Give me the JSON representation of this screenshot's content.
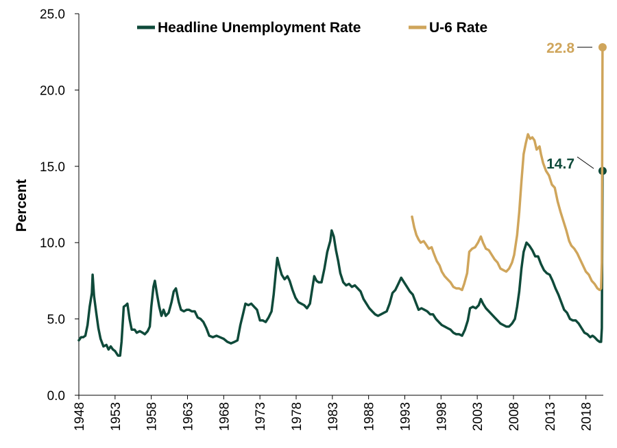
{
  "chart_data": {
    "type": "line",
    "ylabel": "Percent",
    "ylim": [
      0,
      25
    ],
    "xlim": [
      1948,
      2020.4
    ],
    "y_ticks": [
      "0.0",
      "5.0",
      "10.0",
      "15.0",
      "20.0",
      "25.0"
    ],
    "x_ticks": [
      "1948",
      "1953",
      "1958",
      "1963",
      "1968",
      "1973",
      "1978",
      "1983",
      "1988",
      "1993",
      "1998",
      "2003",
      "2008",
      "2013",
      "2018"
    ],
    "grid": false,
    "legend_position": "top",
    "series": [
      {
        "name": "Headline Unemployment Rate",
        "color": "#0f4a3a",
        "points": [
          [
            1948.0,
            3.6
          ],
          [
            1948.3,
            3.8
          ],
          [
            1948.6,
            3.8
          ],
          [
            1948.9,
            3.9
          ],
          [
            1949.2,
            4.6
          ],
          [
            1949.5,
            5.8
          ],
          [
            1949.8,
            6.7
          ],
          [
            1949.9,
            7.9
          ],
          [
            1950.1,
            6.5
          ],
          [
            1950.4,
            5.4
          ],
          [
            1950.7,
            4.4
          ],
          [
            1951.0,
            3.7
          ],
          [
            1951.4,
            3.2
          ],
          [
            1951.8,
            3.3
          ],
          [
            1952.1,
            3.0
          ],
          [
            1952.4,
            3.2
          ],
          [
            1952.7,
            3.0
          ],
          [
            1953.0,
            2.9
          ],
          [
            1953.4,
            2.6
          ],
          [
            1953.7,
            2.6
          ],
          [
            1953.9,
            3.5
          ],
          [
            1954.2,
            5.8
          ],
          [
            1954.5,
            5.9
          ],
          [
            1954.7,
            6.0
          ],
          [
            1955.0,
            5.0
          ],
          [
            1955.3,
            4.3
          ],
          [
            1955.7,
            4.3
          ],
          [
            1956.0,
            4.1
          ],
          [
            1956.4,
            4.2
          ],
          [
            1956.8,
            4.1
          ],
          [
            1957.1,
            4.0
          ],
          [
            1957.5,
            4.2
          ],
          [
            1957.8,
            4.5
          ],
          [
            1958.0,
            5.8
          ],
          [
            1958.3,
            7.1
          ],
          [
            1958.5,
            7.5
          ],
          [
            1958.8,
            6.6
          ],
          [
            1959.1,
            5.8
          ],
          [
            1959.4,
            5.2
          ],
          [
            1959.7,
            5.6
          ],
          [
            1960.0,
            5.2
          ],
          [
            1960.4,
            5.4
          ],
          [
            1960.8,
            6.1
          ],
          [
            1961.1,
            6.8
          ],
          [
            1961.4,
            7.0
          ],
          [
            1961.8,
            6.1
          ],
          [
            1962.1,
            5.6
          ],
          [
            1962.5,
            5.5
          ],
          [
            1962.9,
            5.6
          ],
          [
            1963.2,
            5.6
          ],
          [
            1963.6,
            5.5
          ],
          [
            1964.0,
            5.5
          ],
          [
            1964.4,
            5.1
          ],
          [
            1964.8,
            5.0
          ],
          [
            1965.2,
            4.8
          ],
          [
            1965.6,
            4.4
          ],
          [
            1966.0,
            3.9
          ],
          [
            1966.5,
            3.8
          ],
          [
            1967.0,
            3.9
          ],
          [
            1967.5,
            3.8
          ],
          [
            1968.0,
            3.7
          ],
          [
            1968.5,
            3.5
          ],
          [
            1969.0,
            3.4
          ],
          [
            1969.5,
            3.5
          ],
          [
            1969.9,
            3.6
          ],
          [
            1970.3,
            4.6
          ],
          [
            1970.7,
            5.4
          ],
          [
            1971.0,
            6.0
          ],
          [
            1971.4,
            5.9
          ],
          [
            1971.8,
            6.0
          ],
          [
            1972.2,
            5.8
          ],
          [
            1972.6,
            5.6
          ],
          [
            1973.0,
            4.9
          ],
          [
            1973.4,
            4.9
          ],
          [
            1973.8,
            4.8
          ],
          [
            1974.2,
            5.1
          ],
          [
            1974.6,
            5.5
          ],
          [
            1974.9,
            6.6
          ],
          [
            1975.2,
            8.1
          ],
          [
            1975.4,
            9.0
          ],
          [
            1975.7,
            8.4
          ],
          [
            1976.0,
            7.9
          ],
          [
            1976.4,
            7.6
          ],
          [
            1976.8,
            7.8
          ],
          [
            1977.1,
            7.5
          ],
          [
            1977.5,
            6.9
          ],
          [
            1977.9,
            6.4
          ],
          [
            1978.3,
            6.1
          ],
          [
            1978.7,
            6.0
          ],
          [
            1979.1,
            5.9
          ],
          [
            1979.5,
            5.7
          ],
          [
            1979.9,
            6.0
          ],
          [
            1980.2,
            6.9
          ],
          [
            1980.5,
            7.8
          ],
          [
            1980.8,
            7.5
          ],
          [
            1981.1,
            7.4
          ],
          [
            1981.5,
            7.4
          ],
          [
            1981.9,
            8.3
          ],
          [
            1982.3,
            9.4
          ],
          [
            1982.7,
            10.1
          ],
          [
            1982.9,
            10.8
          ],
          [
            1983.2,
            10.4
          ],
          [
            1983.5,
            9.5
          ],
          [
            1983.8,
            8.8
          ],
          [
            1984.1,
            8.0
          ],
          [
            1984.5,
            7.4
          ],
          [
            1984.9,
            7.2
          ],
          [
            1985.3,
            7.3
          ],
          [
            1985.7,
            7.1
          ],
          [
            1986.1,
            7.2
          ],
          [
            1986.5,
            7.0
          ],
          [
            1986.9,
            6.8
          ],
          [
            1987.3,
            6.3
          ],
          [
            1987.7,
            6.0
          ],
          [
            1988.1,
            5.7
          ],
          [
            1988.5,
            5.5
          ],
          [
            1988.9,
            5.3
          ],
          [
            1989.3,
            5.2
          ],
          [
            1989.7,
            5.3
          ],
          [
            1990.1,
            5.4
          ],
          [
            1990.5,
            5.5
          ],
          [
            1990.9,
            6.0
          ],
          [
            1991.3,
            6.7
          ],
          [
            1991.7,
            6.9
          ],
          [
            1992.1,
            7.3
          ],
          [
            1992.5,
            7.7
          ],
          [
            1992.9,
            7.4
          ],
          [
            1993.3,
            7.1
          ],
          [
            1993.7,
            6.8
          ],
          [
            1994.1,
            6.6
          ],
          [
            1994.5,
            6.1
          ],
          [
            1994.9,
            5.6
          ],
          [
            1995.3,
            5.7
          ],
          [
            1995.7,
            5.6
          ],
          [
            1996.1,
            5.5
          ],
          [
            1996.5,
            5.3
          ],
          [
            1996.9,
            5.3
          ],
          [
            1997.3,
            5.0
          ],
          [
            1997.7,
            4.8
          ],
          [
            1998.1,
            4.6
          ],
          [
            1998.5,
            4.5
          ],
          [
            1998.9,
            4.4
          ],
          [
            1999.3,
            4.3
          ],
          [
            1999.7,
            4.1
          ],
          [
            2000.1,
            4.0
          ],
          [
            2000.5,
            4.0
          ],
          [
            2000.9,
            3.9
          ],
          [
            2001.3,
            4.3
          ],
          [
            2001.7,
            4.9
          ],
          [
            2002.0,
            5.7
          ],
          [
            2002.4,
            5.8
          ],
          [
            2002.8,
            5.7
          ],
          [
            2003.2,
            5.9
          ],
          [
            2003.5,
            6.3
          ],
          [
            2003.8,
            6.0
          ],
          [
            2004.2,
            5.7
          ],
          [
            2004.6,
            5.5
          ],
          [
            2005.0,
            5.3
          ],
          [
            2005.4,
            5.1
          ],
          [
            2005.8,
            4.9
          ],
          [
            2006.2,
            4.7
          ],
          [
            2006.6,
            4.6
          ],
          [
            2007.0,
            4.5
          ],
          [
            2007.4,
            4.5
          ],
          [
            2007.8,
            4.7
          ],
          [
            2008.2,
            5.0
          ],
          [
            2008.5,
            5.8
          ],
          [
            2008.8,
            6.8
          ],
          [
            2009.1,
            8.3
          ],
          [
            2009.4,
            9.4
          ],
          [
            2009.8,
            10.0
          ],
          [
            2010.2,
            9.8
          ],
          [
            2010.6,
            9.5
          ],
          [
            2011.0,
            9.1
          ],
          [
            2011.4,
            9.1
          ],
          [
            2011.8,
            8.6
          ],
          [
            2012.2,
            8.2
          ],
          [
            2012.6,
            8.0
          ],
          [
            2013.0,
            7.9
          ],
          [
            2013.4,
            7.5
          ],
          [
            2013.8,
            7.0
          ],
          [
            2014.2,
            6.6
          ],
          [
            2014.6,
            6.1
          ],
          [
            2015.0,
            5.6
          ],
          [
            2015.4,
            5.4
          ],
          [
            2015.8,
            5.0
          ],
          [
            2016.2,
            4.9
          ],
          [
            2016.6,
            4.9
          ],
          [
            2017.0,
            4.7
          ],
          [
            2017.4,
            4.4
          ],
          [
            2017.8,
            4.1
          ],
          [
            2018.2,
            4.0
          ],
          [
            2018.6,
            3.8
          ],
          [
            2018.9,
            3.9
          ],
          [
            2019.2,
            3.8
          ],
          [
            2019.6,
            3.6
          ],
          [
            2019.9,
            3.5
          ],
          [
            2020.1,
            3.5
          ],
          [
            2020.2,
            4.4
          ],
          [
            2020.3,
            14.7
          ]
        ]
      },
      {
        "name": "U-6 Rate",
        "color": "#cfa55b",
        "points": [
          [
            1994.0,
            11.7
          ],
          [
            1994.3,
            11.0
          ],
          [
            1994.6,
            10.5
          ],
          [
            1994.9,
            10.2
          ],
          [
            1995.2,
            10.0
          ],
          [
            1995.6,
            10.1
          ],
          [
            1995.9,
            9.9
          ],
          [
            1996.3,
            9.6
          ],
          [
            1996.7,
            9.7
          ],
          [
            1997.0,
            9.3
          ],
          [
            1997.4,
            8.8
          ],
          [
            1997.8,
            8.5
          ],
          [
            1998.1,
            8.1
          ],
          [
            1998.5,
            7.8
          ],
          [
            1998.9,
            7.6
          ],
          [
            1999.3,
            7.4
          ],
          [
            1999.7,
            7.1
          ],
          [
            2000.1,
            7.0
          ],
          [
            2000.5,
            7.0
          ],
          [
            2000.9,
            6.9
          ],
          [
            2001.2,
            7.3
          ],
          [
            2001.6,
            8.0
          ],
          [
            2001.9,
            9.4
          ],
          [
            2002.3,
            9.6
          ],
          [
            2002.7,
            9.7
          ],
          [
            2003.1,
            10.0
          ],
          [
            2003.5,
            10.4
          ],
          [
            2003.8,
            10.0
          ],
          [
            2004.2,
            9.6
          ],
          [
            2004.6,
            9.5
          ],
          [
            2005.0,
            9.2
          ],
          [
            2005.4,
            8.9
          ],
          [
            2005.8,
            8.7
          ],
          [
            2006.2,
            8.3
          ],
          [
            2006.6,
            8.2
          ],
          [
            2007.0,
            8.1
          ],
          [
            2007.4,
            8.3
          ],
          [
            2007.8,
            8.7
          ],
          [
            2008.1,
            9.2
          ],
          [
            2008.5,
            10.5
          ],
          [
            2008.8,
            12.0
          ],
          [
            2009.1,
            14.0
          ],
          [
            2009.4,
            15.8
          ],
          [
            2009.7,
            16.5
          ],
          [
            2010.0,
            17.1
          ],
          [
            2010.3,
            16.8
          ],
          [
            2010.6,
            16.9
          ],
          [
            2010.9,
            16.7
          ],
          [
            2011.2,
            16.1
          ],
          [
            2011.6,
            16.3
          ],
          [
            2011.8,
            15.8
          ],
          [
            2012.1,
            15.2
          ],
          [
            2012.5,
            14.7
          ],
          [
            2012.9,
            14.4
          ],
          [
            2013.3,
            13.8
          ],
          [
            2013.7,
            13.6
          ],
          [
            2014.1,
            12.7
          ],
          [
            2014.5,
            12.0
          ],
          [
            2014.9,
            11.4
          ],
          [
            2015.3,
            10.8
          ],
          [
            2015.7,
            10.1
          ],
          [
            2016.0,
            9.8
          ],
          [
            2016.4,
            9.6
          ],
          [
            2016.8,
            9.3
          ],
          [
            2017.2,
            8.9
          ],
          [
            2017.6,
            8.5
          ],
          [
            2018.0,
            8.1
          ],
          [
            2018.4,
            7.9
          ],
          [
            2018.8,
            7.5
          ],
          [
            2019.2,
            7.3
          ],
          [
            2019.6,
            7.0
          ],
          [
            2019.9,
            6.9
          ],
          [
            2020.1,
            7.0
          ],
          [
            2020.2,
            8.7
          ],
          [
            2020.3,
            22.8
          ]
        ]
      }
    ],
    "annotations": [
      {
        "label": "22.8",
        "x": 2020.3,
        "y": 22.8,
        "series": "U-6 Rate"
      },
      {
        "label": "14.7",
        "x": 2020.3,
        "y": 14.7,
        "series": "Headline Unemployment Rate"
      }
    ]
  }
}
